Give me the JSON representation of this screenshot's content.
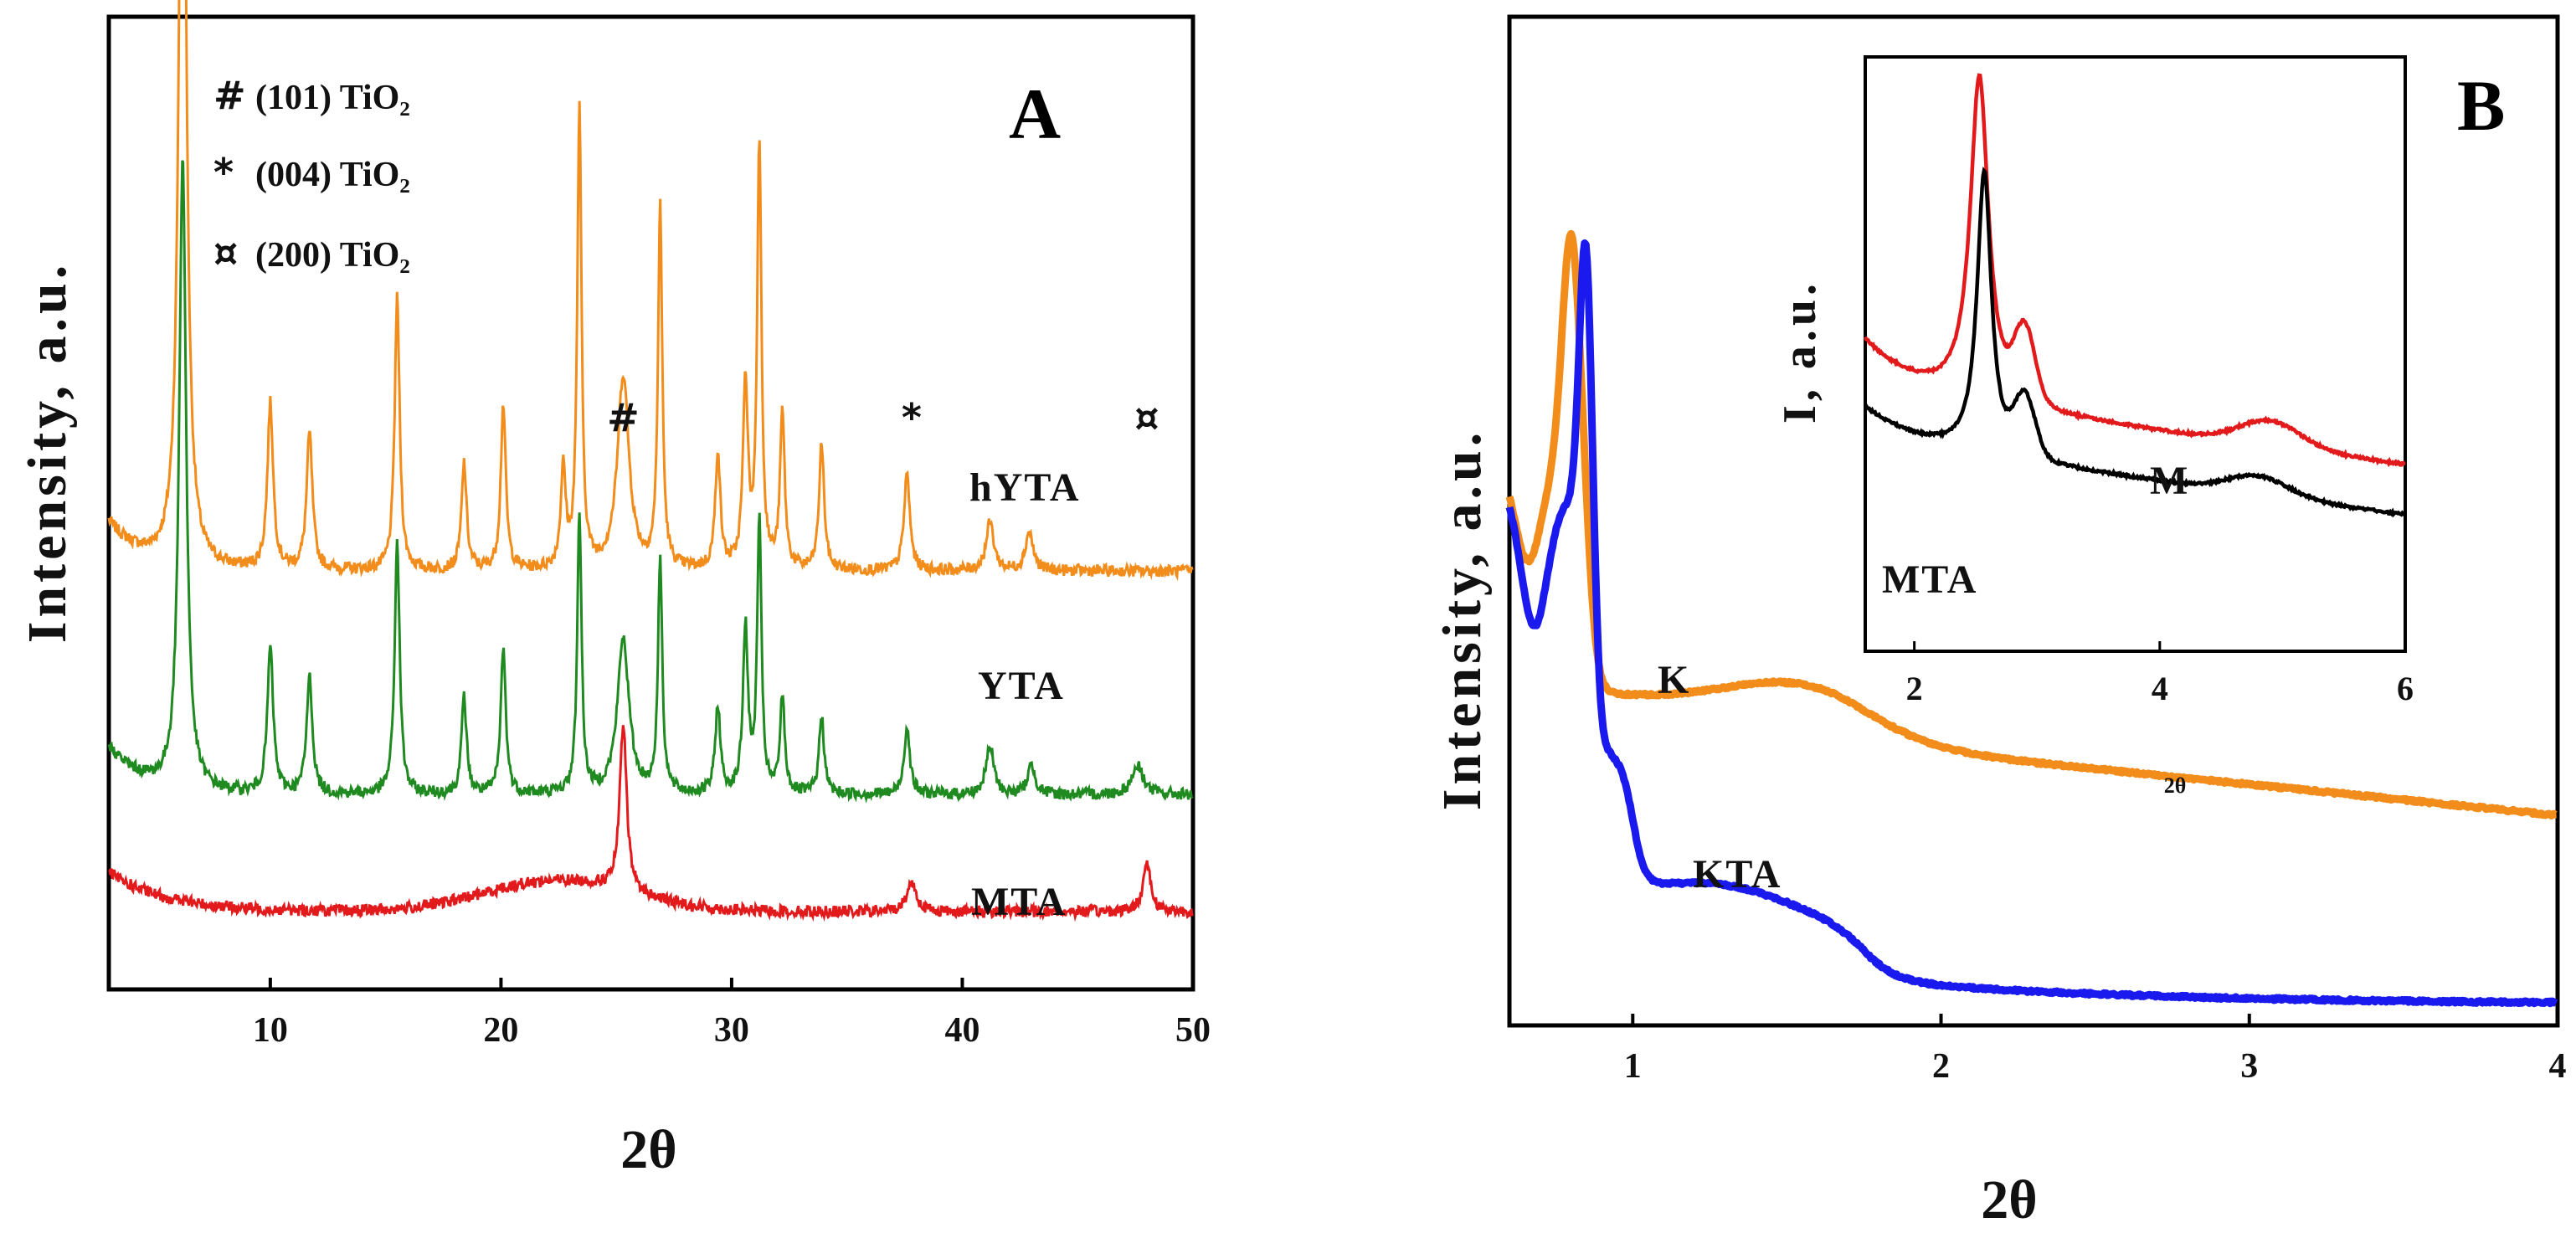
{
  "chart_data": [
    {
      "panel": "A",
      "type": "line",
      "xlabel": "2θ",
      "ylabel": "Intensity, a.u.",
      "xlim": [
        3,
        50
      ],
      "xticks": [
        10,
        20,
        30,
        40,
        50
      ],
      "legend": [
        {
          "symbol": "#",
          "text": "(101) TiO₂"
        },
        {
          "symbol": "*",
          "text": "(004) TiO₂"
        },
        {
          "symbol": "¤",
          "text": "(200) TiO₂"
        }
      ],
      "peak_markers": [
        {
          "symbol": "#",
          "x": 25.3
        },
        {
          "symbol": "*",
          "x": 37.8
        },
        {
          "symbol": "¤",
          "x": 48.0
        }
      ],
      "series": [
        {
          "name": "hYTA",
          "color": "#f28c1a",
          "baseline": 0.57,
          "peaks": [
            [
              6.2,
              1.0,
              0.18
            ],
            [
              10.0,
              0.17,
              0.15
            ],
            [
              11.7,
              0.14,
              0.15
            ],
            [
              15.5,
              0.28,
              0.13
            ],
            [
              18.4,
              0.11,
              0.13
            ],
            [
              20.1,
              0.17,
              0.13
            ],
            [
              22.7,
              0.1,
              0.13
            ],
            [
              23.4,
              0.47,
              0.11
            ],
            [
              25.3,
              0.2,
              0.3
            ],
            [
              26.9,
              0.37,
              0.11
            ],
            [
              29.4,
              0.12,
              0.13
            ],
            [
              30.6,
              0.19,
              0.13
            ],
            [
              31.2,
              0.44,
              0.11
            ],
            [
              32.2,
              0.16,
              0.12
            ],
            [
              33.9,
              0.13,
              0.13
            ],
            [
              37.6,
              0.1,
              0.15
            ],
            [
              41.2,
              0.05,
              0.2
            ],
            [
              42.9,
              0.04,
              0.2
            ]
          ]
        },
        {
          "name": "YTA",
          "color": "#1f8a1f",
          "baseline": 0.8,
          "peaks": [
            [
              6.2,
              0.65,
              0.18
            ],
            [
              10.0,
              0.15,
              0.15
            ],
            [
              11.7,
              0.12,
              0.15
            ],
            [
              15.5,
              0.26,
              0.13
            ],
            [
              18.4,
              0.1,
              0.13
            ],
            [
              20.1,
              0.15,
              0.13
            ],
            [
              23.4,
              0.29,
              0.11
            ],
            [
              25.3,
              0.16,
              0.3
            ],
            [
              26.9,
              0.24,
              0.11
            ],
            [
              29.4,
              0.09,
              0.13
            ],
            [
              30.6,
              0.17,
              0.13
            ],
            [
              31.2,
              0.28,
              0.11
            ],
            [
              32.2,
              0.1,
              0.12
            ],
            [
              33.9,
              0.08,
              0.13
            ],
            [
              37.6,
              0.07,
              0.15
            ],
            [
              41.2,
              0.05,
              0.2
            ],
            [
              43,
              0.03,
              0.2
            ],
            [
              47.6,
              0.03,
              0.3
            ]
          ]
        },
        {
          "name": "MTA",
          "color": "#e31a1c",
          "baseline": 0.92,
          "peaks": [
            [
              25.3,
              0.17,
              0.18
            ],
            [
              37.8,
              0.03,
              0.25
            ],
            [
              48.0,
              0.05,
              0.2
            ]
          ]
        }
      ]
    },
    {
      "panel": "B",
      "type": "line",
      "xlabel": "2θ",
      "ylabel": "Intensity, a.u.",
      "xlim": [
        0.6,
        4
      ],
      "xticks": [
        1,
        2,
        3,
        4
      ],
      "series": [
        {
          "name": "K",
          "color": "#f28c1a"
        },
        {
          "name": "KTA",
          "color": "#1a1aee"
        }
      ],
      "inset": {
        "xlabel": "2θ",
        "ylabel": "I, a.u.",
        "xlim": [
          1.6,
          6
        ],
        "xticks": [
          2,
          4,
          6
        ],
        "series": [
          {
            "name": "M",
            "color": "#e31a1c"
          },
          {
            "name": "MTA",
            "color": "#000000"
          }
        ]
      }
    }
  ]
}
